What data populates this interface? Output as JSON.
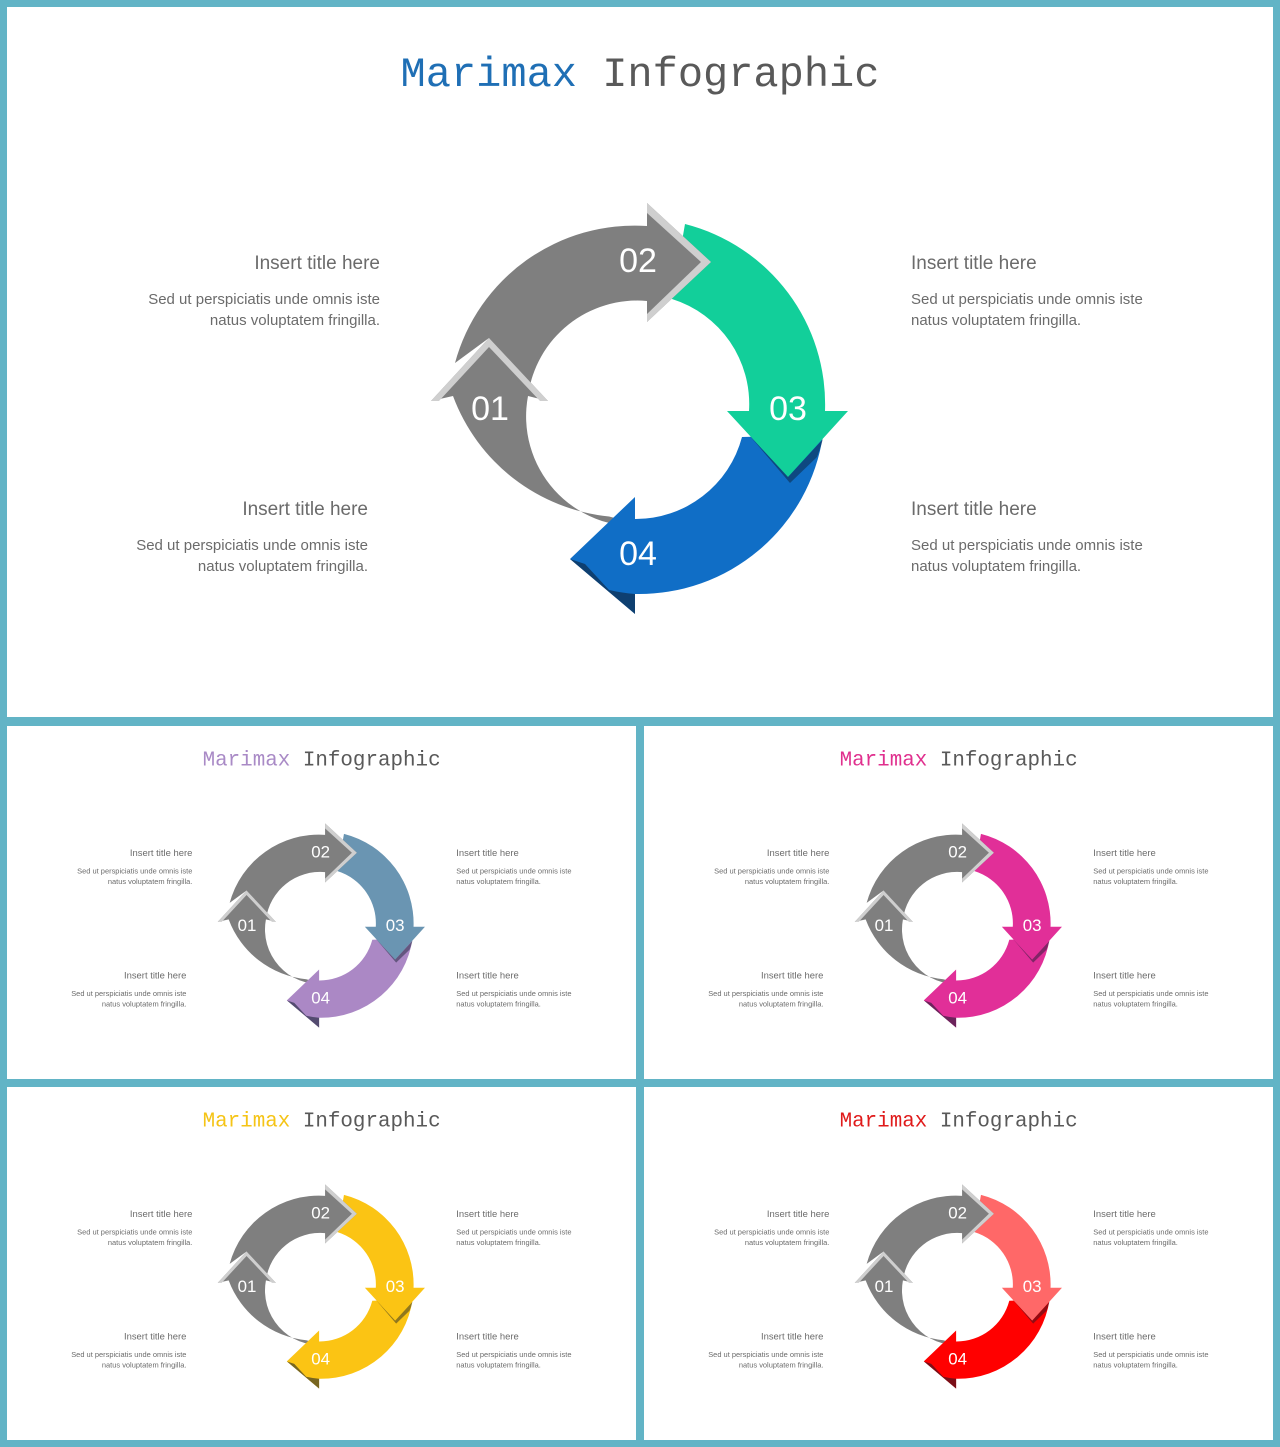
{
  "slides": [
    {
      "title_accent": "Marimax",
      "title_rest": "Infographic",
      "accent_color": "#1f6fb5",
      "arrow3_color": "#12cf9a",
      "arrow4_color": "#106ec6",
      "arrow_gray": "#7f7f7f"
    },
    {
      "title_accent": "Marimax",
      "title_rest": "Infographic",
      "accent_color": "#a98ac6",
      "arrow3_color": "#6a95b2",
      "arrow4_color": "#ab88c5",
      "arrow_gray": "#7f7f7f"
    },
    {
      "title_accent": "Marimax",
      "title_rest": "Infographic",
      "accent_color": "#e0308e",
      "arrow3_color": "#e12f98",
      "arrow4_color": "#e12f98",
      "arrow_gray": "#7f7f7f"
    },
    {
      "title_accent": "Marimax",
      "title_rest": "Infographic",
      "accent_color": "#f5c416",
      "arrow3_color": "#fbc414",
      "arrow4_color": "#fbc414",
      "arrow_gray": "#7f7f7f"
    },
    {
      "title_accent": "Marimax",
      "title_rest": "Infographic",
      "accent_color": "#e01b1b",
      "arrow3_color": "#ff6868",
      "arrow4_color": "#ff0000",
      "arrow_gray": "#7f7f7f"
    }
  ],
  "steps": [
    "01",
    "02",
    "03",
    "04"
  ],
  "blocks": {
    "top_left": {
      "title": "Insert title here",
      "desc1": "Sed ut perspiciatis unde omnis iste",
      "desc2": "natus voluptatem fringilla."
    },
    "bottom_left": {
      "title": "Insert title here",
      "desc1": "Sed ut perspiciatis unde omnis iste",
      "desc2": "natus voluptatem fringilla."
    },
    "top_right": {
      "title": "Insert title here",
      "desc1": "Sed ut perspiciatis unde omnis iste",
      "desc2": "natus voluptatem fringilla."
    },
    "bottom_right": {
      "title": "Insert title here",
      "desc1": "Sed ut perspiciatis unde omnis iste",
      "desc2": "natus voluptatem fringilla."
    }
  }
}
